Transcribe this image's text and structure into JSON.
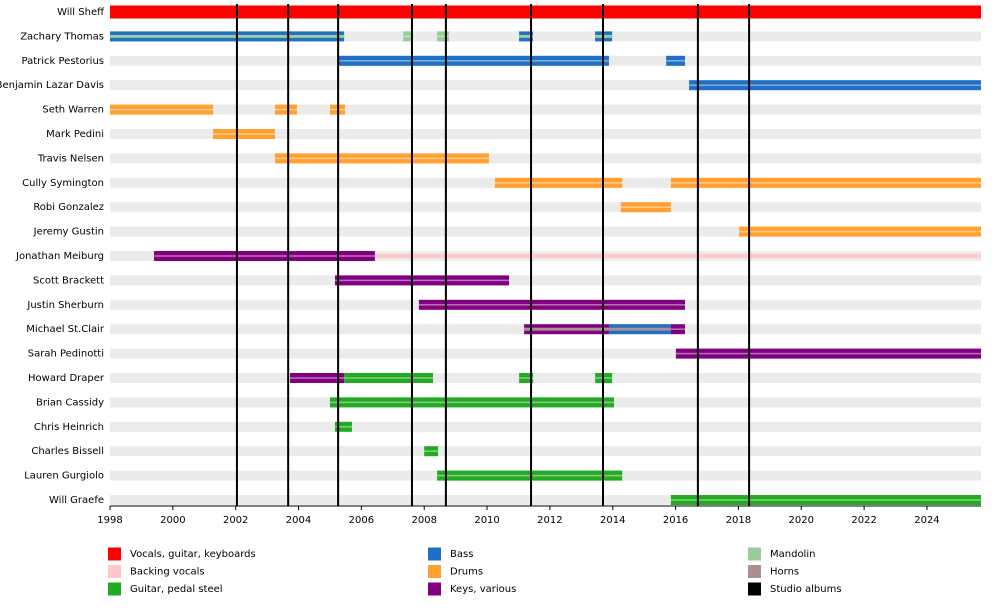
{
  "chart_data": {
    "type": "timeline",
    "xlim": [
      1998,
      2025.72
    ],
    "xticks": [
      1998,
      2000,
      2002,
      2004,
      2006,
      2008,
      2010,
      2012,
      2014,
      2016,
      2018,
      2020,
      2022,
      2024
    ],
    "legend": [
      {
        "name": "Vocals, guitar, keyboards",
        "color": "#ff0000"
      },
      {
        "name": "Backing vocals",
        "color": "#ffc8c8"
      },
      {
        "name": "Guitar, pedal steel",
        "color": "#22aa22"
      },
      {
        "name": "Bass",
        "color": "#1f6fc4"
      },
      {
        "name": "Drums",
        "color": "#ffa030"
      },
      {
        "name": "Keys, various",
        "color": "#800080"
      },
      {
        "name": "Mandolin",
        "color": "#99cc99"
      },
      {
        "name": "Horns",
        "color": "#aa9090"
      },
      {
        "name": "Studio albums",
        "color": "#000000"
      }
    ],
    "albums": [
      2002.04,
      2003.67,
      2005.26,
      2007.61,
      2008.69,
      2011.4,
      2013.69,
      2016.71,
      2018.34
    ],
    "members": [
      {
        "name": "Will Sheff",
        "bars": [
          {
            "start": 1998,
            "end": 2025.72,
            "role": "Vocals, guitar, keyboards"
          }
        ]
      },
      {
        "name": "Zachary Thomas",
        "bars": [
          {
            "start": 1998,
            "end": 2005.45,
            "role": "Bass",
            "role2": "Mandolin"
          },
          {
            "start": 2007.33,
            "end": 2007.61,
            "role": "Mandolin"
          },
          {
            "start": 2008.41,
            "end": 2008.79,
            "role": "Mandolin"
          },
          {
            "start": 2011.02,
            "end": 2011.46,
            "role": "Bass",
            "role2": "Mandolin"
          },
          {
            "start": 2013.44,
            "end": 2013.98,
            "role": "Bass",
            "role2": "Mandolin"
          }
        ]
      },
      {
        "name": "Patrick Pestorius",
        "bars": [
          {
            "start": 2005.26,
            "end": 2013.88,
            "role": "Bass"
          },
          {
            "start": 2015.7,
            "end": 2016.3,
            "role": "Bass"
          }
        ]
      },
      {
        "name": "Benjamin Lazar Davis",
        "bars": [
          {
            "start": 2016.43,
            "end": 2025.72,
            "role": "Bass"
          }
        ]
      },
      {
        "name": "Seth Warren",
        "bars": [
          {
            "start": 1998,
            "end": 2001.28,
            "role": "Drums"
          },
          {
            "start": 2003.25,
            "end": 2003.95,
            "role": "Drums"
          },
          {
            "start": 2005.0,
            "end": 2005.48,
            "role": "Drums"
          }
        ]
      },
      {
        "name": "Mark Pedini",
        "bars": [
          {
            "start": 2001.28,
            "end": 2003.25,
            "role": "Drums"
          }
        ]
      },
      {
        "name": "Travis Nelsen",
        "bars": [
          {
            "start": 2003.25,
            "end": 2010.06,
            "role": "Drums"
          }
        ]
      },
      {
        "name": "Cully Symington",
        "bars": [
          {
            "start": 2010.25,
            "end": 2014.3,
            "role": "Drums"
          },
          {
            "start": 2015.85,
            "end": 2025.72,
            "role": "Drums"
          }
        ]
      },
      {
        "name": "Robi Gonzalez",
        "bars": [
          {
            "start": 2014.26,
            "end": 2015.85,
            "role": "Drums"
          }
        ]
      },
      {
        "name": "Jeremy Gustin",
        "bars": [
          {
            "start": 2018.02,
            "end": 2025.72,
            "role": "Drums"
          }
        ]
      },
      {
        "name": "Jonathan Meiburg",
        "bars": [
          {
            "start": 1999.4,
            "end": 2006.43,
            "role": "Keys, various"
          },
          {
            "start": 2006.43,
            "end": 2025.72,
            "role": "Backing vocals"
          }
        ]
      },
      {
        "name": "Scott Brackett",
        "bars": [
          {
            "start": 2005.16,
            "end": 2010.7,
            "role": "Keys, various"
          }
        ]
      },
      {
        "name": "Justin Sherburn",
        "bars": [
          {
            "start": 2007.83,
            "end": 2016.3,
            "role": "Keys, various"
          }
        ]
      },
      {
        "name": "Michael St.Clair",
        "bars": [
          {
            "start": 2011.18,
            "end": 2013.88,
            "role": "Keys, various",
            "role2": "Horns"
          },
          {
            "start": 2013.88,
            "end": 2015.85,
            "role": "Bass",
            "role2": "Horns"
          },
          {
            "start": 2015.85,
            "end": 2016.3,
            "role": "Keys, various"
          }
        ]
      },
      {
        "name": "Sarah Pedinotti",
        "bars": [
          {
            "start": 2016.01,
            "end": 2025.72,
            "role": "Keys, various"
          }
        ]
      },
      {
        "name": "Howard Draper",
        "bars": [
          {
            "start": 2003.73,
            "end": 2005.45,
            "role": "Keys, various"
          },
          {
            "start": 2005.45,
            "end": 2008.28,
            "role": "Guitar, pedal steel"
          },
          {
            "start": 2011.02,
            "end": 2011.46,
            "role": "Guitar, pedal steel"
          },
          {
            "start": 2013.44,
            "end": 2013.98,
            "role": "Guitar, pedal steel"
          }
        ]
      },
      {
        "name": "Brian Cassidy",
        "bars": [
          {
            "start": 2005.0,
            "end": 2014.04,
            "role": "Guitar, pedal steel"
          }
        ]
      },
      {
        "name": "Chris Heinrich",
        "bars": [
          {
            "start": 2005.16,
            "end": 2005.7,
            "role": "Guitar, pedal steel"
          }
        ]
      },
      {
        "name": "Charles Bissell",
        "bars": [
          {
            "start": 2008.0,
            "end": 2008.44,
            "role": "Guitar, pedal steel"
          }
        ]
      },
      {
        "name": "Lauren Gurgiolo",
        "bars": [
          {
            "start": 2008.41,
            "end": 2014.3,
            "role": "Guitar, pedal steel"
          }
        ]
      },
      {
        "name": "Will Graefe",
        "bars": [
          {
            "start": 2015.85,
            "end": 2025.72,
            "role": "Guitar, pedal steel"
          }
        ]
      }
    ]
  }
}
